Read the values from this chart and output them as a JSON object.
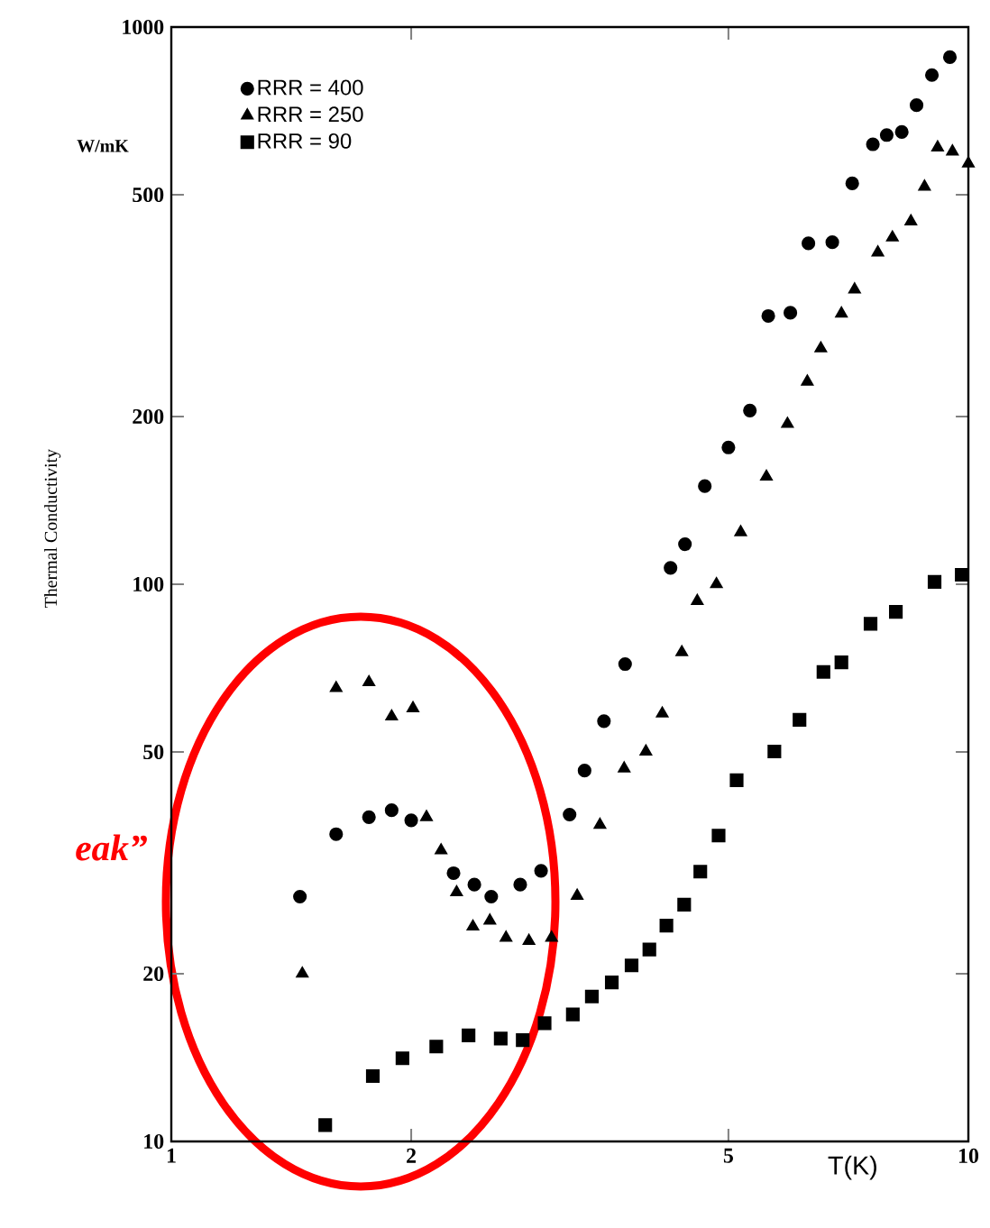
{
  "chart_data": {
    "type": "scatter",
    "xlabel": "T(K)",
    "ylabel": "Thermal Conductivity",
    "annotations": [
      "W/mK",
      "eak”"
    ],
    "log": "xy",
    "grid": false,
    "legend": "top left",
    "xlim": [
      1,
      10
    ],
    "xticks": [
      1,
      2,
      5,
      10
    ],
    "ylim": [
      10,
      1000
    ],
    "yticks": [
      10,
      20,
      50,
      100,
      200,
      500,
      1000
    ],
    "series": [
      {
        "name": "RRR = 400",
        "color": "#000000",
        "marker": "circle",
        "x": [
          1.45,
          1.61,
          1.77,
          1.89,
          2.0,
          2.26,
          2.4,
          2.52,
          2.74,
          2.91,
          3.16,
          3.3,
          3.49,
          3.71,
          4.23,
          4.41,
          4.67,
          5.0,
          5.32,
          5.61,
          5.98,
          6.3,
          6.75,
          7.15,
          7.59,
          7.9,
          8.25,
          8.61,
          9.0,
          9.48
        ],
        "values": [
          27.5,
          35.6,
          38.2,
          39.3,
          37.7,
          30.3,
          28.9,
          27.5,
          28.9,
          30.6,
          38.6,
          46.3,
          56.8,
          71.9,
          107,
          118,
          150,
          176,
          205,
          303,
          307,
          409,
          411,
          524,
          616,
          640,
          648,
          724,
          820,
          883
        ]
      },
      {
        "name": "RRR = 250",
        "color": "#000000",
        "marker": "triangle",
        "x": [
          1.46,
          1.61,
          1.77,
          1.89,
          2.01,
          2.09,
          2.18,
          2.28,
          2.39,
          2.51,
          2.63,
          2.81,
          3.0,
          3.23,
          3.45,
          3.7,
          3.94,
          4.13,
          4.37,
          4.57,
          4.83,
          5.18,
          5.58,
          5.93,
          6.28,
          6.53,
          6.93,
          7.2,
          7.7,
          8.03,
          8.47,
          8.81,
          9.15,
          9.55,
          10.0
        ],
        "values": [
          20.0,
          65.1,
          66.7,
          57.9,
          59.9,
          38.2,
          33.3,
          28.0,
          24.3,
          24.9,
          23.2,
          22.9,
          23.2,
          27.6,
          37.0,
          46.7,
          50.1,
          58.6,
          75.5,
          93.3,
          100,
          124,
          156,
          194,
          231,
          265,
          306,
          338,
          394,
          419,
          448,
          517,
          608,
          598,
          569
        ]
      },
      {
        "name": "RRR =  90",
        "color": "#000000",
        "marker": "square",
        "x": [
          1.56,
          1.79,
          1.95,
          2.15,
          2.36,
          2.59,
          2.76,
          2.94,
          3.19,
          3.37,
          3.57,
          3.78,
          3.98,
          4.18,
          4.4,
          4.61,
          4.86,
          5.12,
          5.71,
          6.14,
          6.58,
          6.93,
          7.54,
          8.11,
          9.07,
          9.81
        ],
        "values": [
          10.7,
          13.1,
          14.1,
          14.8,
          15.5,
          15.3,
          15.2,
          16.3,
          16.9,
          18.2,
          19.3,
          20.7,
          22.1,
          24.4,
          26.6,
          30.5,
          35.4,
          44.5,
          50.1,
          57.1,
          69.6,
          72.4,
          84.9,
          89.2,
          101,
          104
        ]
      }
    ]
  }
}
